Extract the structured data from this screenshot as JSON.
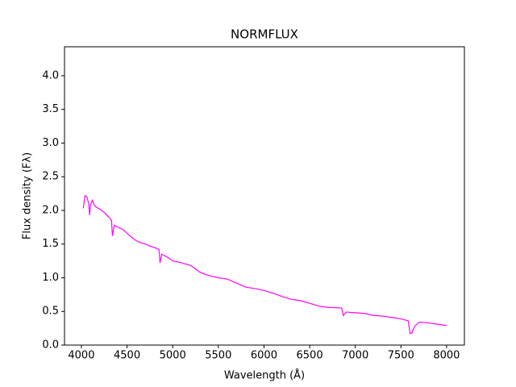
{
  "chart_data": {
    "type": "line",
    "title": "NORMFLUX",
    "x_label": "Wavelength (Å)",
    "y_label": "Flux density (Fλ)",
    "x": [
      4020,
      4040,
      4060,
      4080,
      4090,
      4100,
      4120,
      4140,
      4160,
      4200,
      4250,
      4300,
      4330,
      4340,
      4360,
      4400,
      4450,
      4500,
      4550,
      4600,
      4650,
      4700,
      4750,
      4800,
      4850,
      4861,
      4880,
      4950,
      5000,
      5100,
      5200,
      5300,
      5400,
      5500,
      5600,
      5700,
      5800,
      5900,
      6000,
      6100,
      6200,
      6300,
      6400,
      6500,
      6600,
      6700,
      6850,
      6870,
      6900,
      7000,
      7100,
      7200,
      7300,
      7400,
      7500,
      7580,
      7600,
      7620,
      7650,
      7700,
      7800,
      7900,
      8000
    ],
    "series": [
      {
        "name": "NORMFLUX",
        "color": "#ff00ff",
        "values": [
          2.03,
          2.22,
          2.2,
          2.1,
          1.93,
          2.08,
          2.15,
          2.08,
          2.05,
          2.02,
          1.97,
          1.9,
          1.85,
          1.62,
          1.78,
          1.75,
          1.72,
          1.66,
          1.6,
          1.55,
          1.52,
          1.5,
          1.47,
          1.45,
          1.42,
          1.22,
          1.35,
          1.3,
          1.25,
          1.22,
          1.18,
          1.08,
          1.03,
          1.0,
          0.98,
          0.92,
          0.86,
          0.84,
          0.81,
          0.77,
          0.72,
          0.68,
          0.66,
          0.62,
          0.58,
          0.56,
          0.55,
          0.44,
          0.49,
          0.48,
          0.47,
          0.44,
          0.43,
          0.41,
          0.39,
          0.36,
          0.17,
          0.18,
          0.28,
          0.34,
          0.33,
          0.31,
          0.29
        ]
      }
    ],
    "xlim": [
      3815,
      8195
    ],
    "ylim": [
      0,
      4.43
    ],
    "xticks": [
      4000,
      4500,
      5000,
      5500,
      6000,
      6500,
      7000,
      7500,
      8000
    ],
    "yticks": [
      {
        "value": 0,
        "label": "0.0"
      },
      0.5,
      {
        "value": 1,
        "label": "1.0"
      },
      1.5,
      {
        "value": 2,
        "label": "2.0"
      },
      2.5,
      {
        "value": 3,
        "label": "3.0"
      },
      3.5,
      {
        "value": 4,
        "label": "4.0"
      }
    ]
  }
}
